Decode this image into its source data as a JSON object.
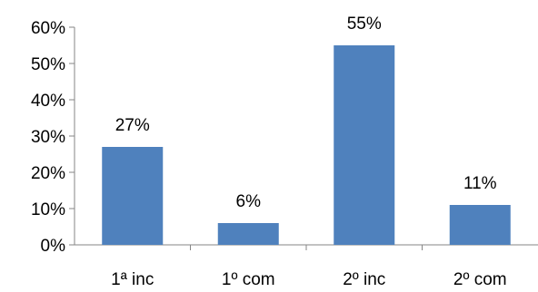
{
  "chart_data": {
    "type": "bar",
    "categories": [
      "1ª inc",
      "1º com",
      "2º inc",
      "2º com"
    ],
    "values": [
      27,
      6,
      55,
      11
    ],
    "data_labels": [
      "27%",
      "6%",
      "55%",
      "11%"
    ],
    "ylim": [
      0,
      60
    ],
    "y_ticks": [
      0,
      10,
      20,
      30,
      40,
      50,
      60
    ],
    "y_tick_labels": [
      "0%",
      "10%",
      "20%",
      "30%",
      "40%",
      "50%",
      "60%"
    ],
    "grid": false,
    "legend": "none",
    "bar_color": "#4F81BD",
    "axis_color": "#868686"
  }
}
